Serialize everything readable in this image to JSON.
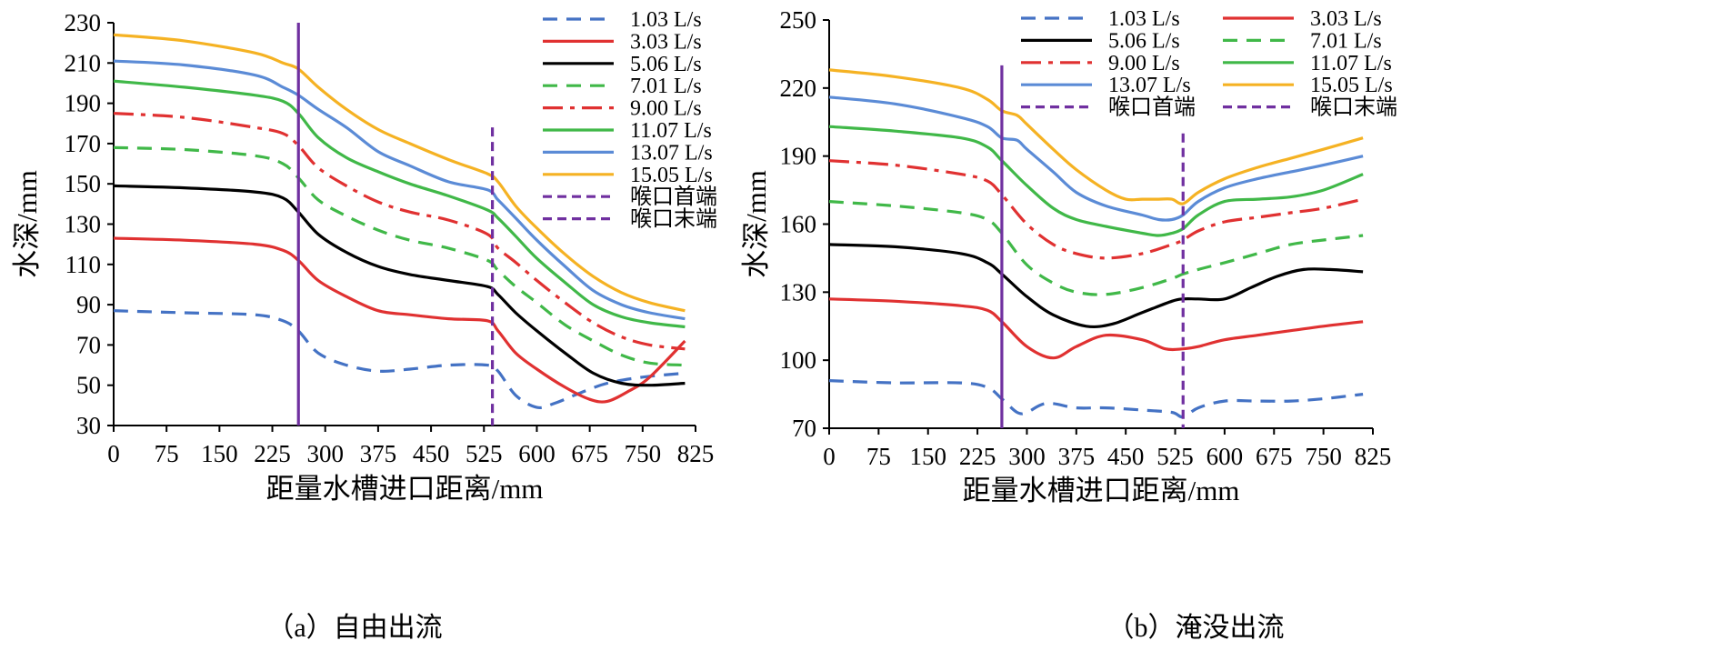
{
  "charts": [
    {
      "panel": "a",
      "caption": "（a）自由出流",
      "chart_data": {
        "type": "line",
        "title": "",
        "xlabel": "距量水槽进口距离/mm",
        "ylabel": "水深/mm",
        "xlim": [
          0,
          825
        ],
        "ylim": [
          30,
          230
        ],
        "xticks": [
          0,
          75,
          150,
          225,
          300,
          375,
          450,
          525,
          600,
          675,
          750,
          825
        ],
        "yticks": [
          30,
          50,
          70,
          90,
          110,
          130,
          150,
          170,
          190,
          210,
          230
        ],
        "grid": false,
        "legend_position": "top-right",
        "legend_columns": 1,
        "series": [
          {
            "name": "1.03 L/s",
            "color": "#4472c4",
            "dash": "dashed",
            "x": [
              0,
              100,
              200,
              240,
              262,
              290,
              330,
              375,
              420,
              475,
              530,
              545,
              570,
              600,
              625,
              660,
              700,
              750,
              810
            ],
            "y": [
              87,
              86,
              85,
              82,
              77,
              66,
              60,
              57,
              58,
              60,
              60,
              57,
              45,
              39,
              41,
              46,
              51,
              54,
              56
            ]
          },
          {
            "name": "3.03 L/s",
            "color": "#e03131",
            "dash": "solid",
            "x": [
              0,
              100,
              200,
              240,
              262,
              290,
              330,
              375,
              420,
              475,
              530,
              545,
              570,
              600,
              640,
              675,
              700,
              730,
              760,
              810
            ],
            "y": [
              123,
              122,
              120,
              117,
              112,
              102,
              94,
              87,
              85,
              83,
              82,
              77,
              66,
              58,
              49,
              43,
              42,
              47,
              54,
              72
            ]
          },
          {
            "name": "5.06 L/s",
            "color": "#000000",
            "dash": "solid",
            "x": [
              0,
              100,
              200,
              240,
              262,
              290,
              330,
              375,
              420,
              475,
              530,
              545,
              570,
              600,
              640,
              680,
              720,
              760,
              810
            ],
            "y": [
              149,
              148,
              146,
              143,
              136,
              125,
              116,
              109,
              105,
              102,
              99,
              95,
              86,
              77,
              66,
              56,
              51,
              50,
              51
            ]
          },
          {
            "name": "7.01 L/s",
            "color": "#40b848",
            "dash": "dashed",
            "x": [
              0,
              100,
              200,
              240,
              262,
              290,
              330,
              375,
              420,
              475,
              530,
              545,
              570,
              600,
              640,
              680,
              720,
              760,
              810
            ],
            "y": [
              168,
              167,
              164,
              160,
              153,
              142,
              134,
              127,
              122,
              118,
              112,
              107,
              99,
              91,
              80,
              72,
              65,
              61,
              60
            ]
          },
          {
            "name": "9.00 L/s",
            "color": "#e03131",
            "dash": "dashdot",
            "x": [
              0,
              100,
              200,
              240,
              262,
              290,
              330,
              375,
              420,
              475,
              530,
              545,
              570,
              600,
              640,
              680,
              720,
              760,
              810
            ],
            "y": [
              185,
              183,
              178,
              175,
              169,
              158,
              149,
              141,
              136,
              132,
              125,
              118,
              111,
              102,
              91,
              81,
              74,
              70,
              68
            ]
          },
          {
            "name": "11.07 L/s",
            "color": "#40b848",
            "dash": "solid",
            "x": [
              0,
              100,
              200,
              240,
              262,
              290,
              330,
              375,
              420,
              475,
              530,
              545,
              570,
              600,
              640,
              680,
              720,
              760,
              810
            ],
            "y": [
              201,
              198,
              194,
              191,
              185,
              173,
              163,
              156,
              150,
              144,
              137,
              133,
              124,
              113,
              101,
              90,
              84,
              81,
              79
            ]
          },
          {
            "name": "13.07 L/s",
            "color": "#5b8bd6",
            "dash": "solid",
            "x": [
              0,
              100,
              200,
              240,
              262,
              290,
              330,
              375,
              420,
              475,
              530,
              545,
              570,
              600,
              640,
              680,
              720,
              760,
              810
            ],
            "y": [
              211,
              209,
              204,
              198,
              194,
              187,
              178,
              166,
              159,
              151,
              147,
              142,
              133,
              122,
              109,
              97,
              90,
              86,
              83
            ]
          },
          {
            "name": "15.05 L/s",
            "color": "#f5b223",
            "dash": "solid",
            "x": [
              0,
              100,
              200,
              240,
              262,
              290,
              330,
              375,
              420,
              475,
              530,
              545,
              570,
              600,
              640,
              680,
              720,
              760,
              810
            ],
            "y": [
              224,
              221,
              215,
              210,
              207,
              198,
              187,
              177,
              170,
              162,
              155,
              151,
              139,
              128,
              115,
              104,
              96,
              91,
              87
            ]
          }
        ],
        "vlines": [
          {
            "name": "喉口首端",
            "x": 262,
            "color": "#7030a0",
            "dash": "solid",
            "y_top": 230
          },
          {
            "name": "喉口末端",
            "x": 537,
            "color": "#7030a0",
            "dash": "dashed",
            "y_top": 178
          }
        ]
      }
    },
    {
      "panel": "b",
      "caption": "（b）淹没出流",
      "chart_data": {
        "type": "line",
        "title": "",
        "xlabel": "距量水槽进口距离/mm",
        "ylabel": "水深/mm",
        "xlim": [
          0,
          825
        ],
        "ylim": [
          70,
          250
        ],
        "xticks": [
          0,
          75,
          150,
          225,
          300,
          375,
          450,
          525,
          600,
          675,
          750,
          825
        ],
        "yticks": [
          70,
          100,
          130,
          160,
          190,
          220,
          250
        ],
        "grid": false,
        "legend_position": "top-right",
        "legend_columns": 2,
        "series": [
          {
            "name": "1.03 L/s",
            "color": "#4472c4",
            "dash": "dashed",
            "x": [
              0,
              100,
              200,
              240,
              262,
              285,
              300,
              330,
              375,
              420,
              475,
              520,
              537,
              560,
              600,
              650,
              700,
              750,
              810
            ],
            "y": [
              91,
              90,
              90,
              88,
              83,
              77,
              77,
              81,
              79,
              79,
              78,
              77,
              75,
              79,
              82,
              82,
              82,
              83,
              85
            ]
          },
          {
            "name": "3.03 L/s",
            "color": "#e03131",
            "dash": "solid",
            "x": [
              0,
              100,
              200,
              240,
              262,
              300,
              340,
              375,
              420,
              475,
              510,
              537,
              560,
              600,
              650,
              700,
              750,
              810
            ],
            "y": [
              127,
              126,
              124,
              122,
              117,
              106,
              101,
              106,
              111,
              109,
              105,
              105,
              106,
              109,
              111,
              113,
              115,
              117
            ]
          },
          {
            "name": "5.06 L/s",
            "color": "#000000",
            "dash": "solid",
            "x": [
              0,
              100,
              200,
              240,
              262,
              300,
              340,
              390,
              430,
              475,
              520,
              537,
              560,
              600,
              640,
              680,
              720,
              760,
              810
            ],
            "y": [
              151,
              150,
              147,
              143,
              138,
              128,
              120,
              115,
              116,
              121,
              126,
              127,
              127,
              127,
              132,
              137,
              140,
              140,
              139
            ]
          },
          {
            "name": "7.01 L/s",
            "color": "#40b848",
            "dash": "dashed",
            "x": [
              0,
              100,
              200,
              240,
              262,
              300,
              340,
              375,
              420,
              475,
              520,
              537,
              560,
              600,
              650,
              700,
              750,
              810
            ],
            "y": [
              170,
              168,
              165,
              162,
              156,
              142,
              134,
              130,
              129,
              132,
              136,
              138,
              140,
              143,
              147,
              151,
              153,
              155
            ]
          },
          {
            "name": "9.00 L/s",
            "color": "#e03131",
            "dash": "dashdot",
            "x": [
              0,
              100,
              200,
              240,
              262,
              300,
              340,
              375,
              420,
              475,
              520,
              537,
              560,
              600,
              650,
              700,
              750,
              810
            ],
            "y": [
              188,
              186,
              182,
              179,
              173,
              160,
              151,
              147,
              145,
              147,
              151,
              153,
              157,
              161,
              163,
              165,
              167,
              171
            ]
          },
          {
            "name": "11.07 L/s",
            "color": "#40b848",
            "dash": "solid",
            "x": [
              0,
              100,
              200,
              240,
              262,
              300,
              340,
              375,
              420,
              475,
              500,
              520,
              537,
              560,
              600,
              650,
              700,
              750,
              810
            ],
            "y": [
              203,
              201,
              198,
              194,
              188,
              177,
              167,
              162,
              159,
              156,
              155,
              156,
              158,
              164,
              170,
              171,
              172,
              175,
              182
            ]
          },
          {
            "name": "13.07 L/s",
            "color": "#5b8bd6",
            "dash": "solid",
            "x": [
              0,
              100,
              200,
              240,
              262,
              285,
              300,
              340,
              375,
              420,
              475,
              500,
              520,
              537,
              560,
              600,
              650,
              700,
              750,
              810
            ],
            "y": [
              216,
              213,
              207,
              203,
              198,
              197,
              193,
              183,
              174,
              168,
              164,
              162,
              162,
              164,
              170,
              176,
              180,
              183,
              186,
              190
            ]
          },
          {
            "name": "15.05 L/s",
            "color": "#f5b223",
            "dash": "solid",
            "x": [
              0,
              100,
              200,
              240,
              262,
              285,
              300,
              340,
              375,
              420,
              450,
              475,
              500,
              520,
              537,
              560,
              600,
              650,
              700,
              750,
              810
            ],
            "y": [
              228,
              225,
              220,
              215,
              210,
              208,
              204,
              193,
              184,
              175,
              171,
              171,
              171,
              171,
              169,
              174,
              180,
              185,
              189,
              193,
              198
            ]
          }
        ],
        "vlines": [
          {
            "name": "喉口首端",
            "x": 262,
            "color": "#7030a0",
            "dash": "solid",
            "y_top": 230
          },
          {
            "name": "喉口末端",
            "x": 537,
            "color": "#7030a0",
            "dash": "dashed",
            "y_top": 200
          }
        ]
      }
    }
  ]
}
